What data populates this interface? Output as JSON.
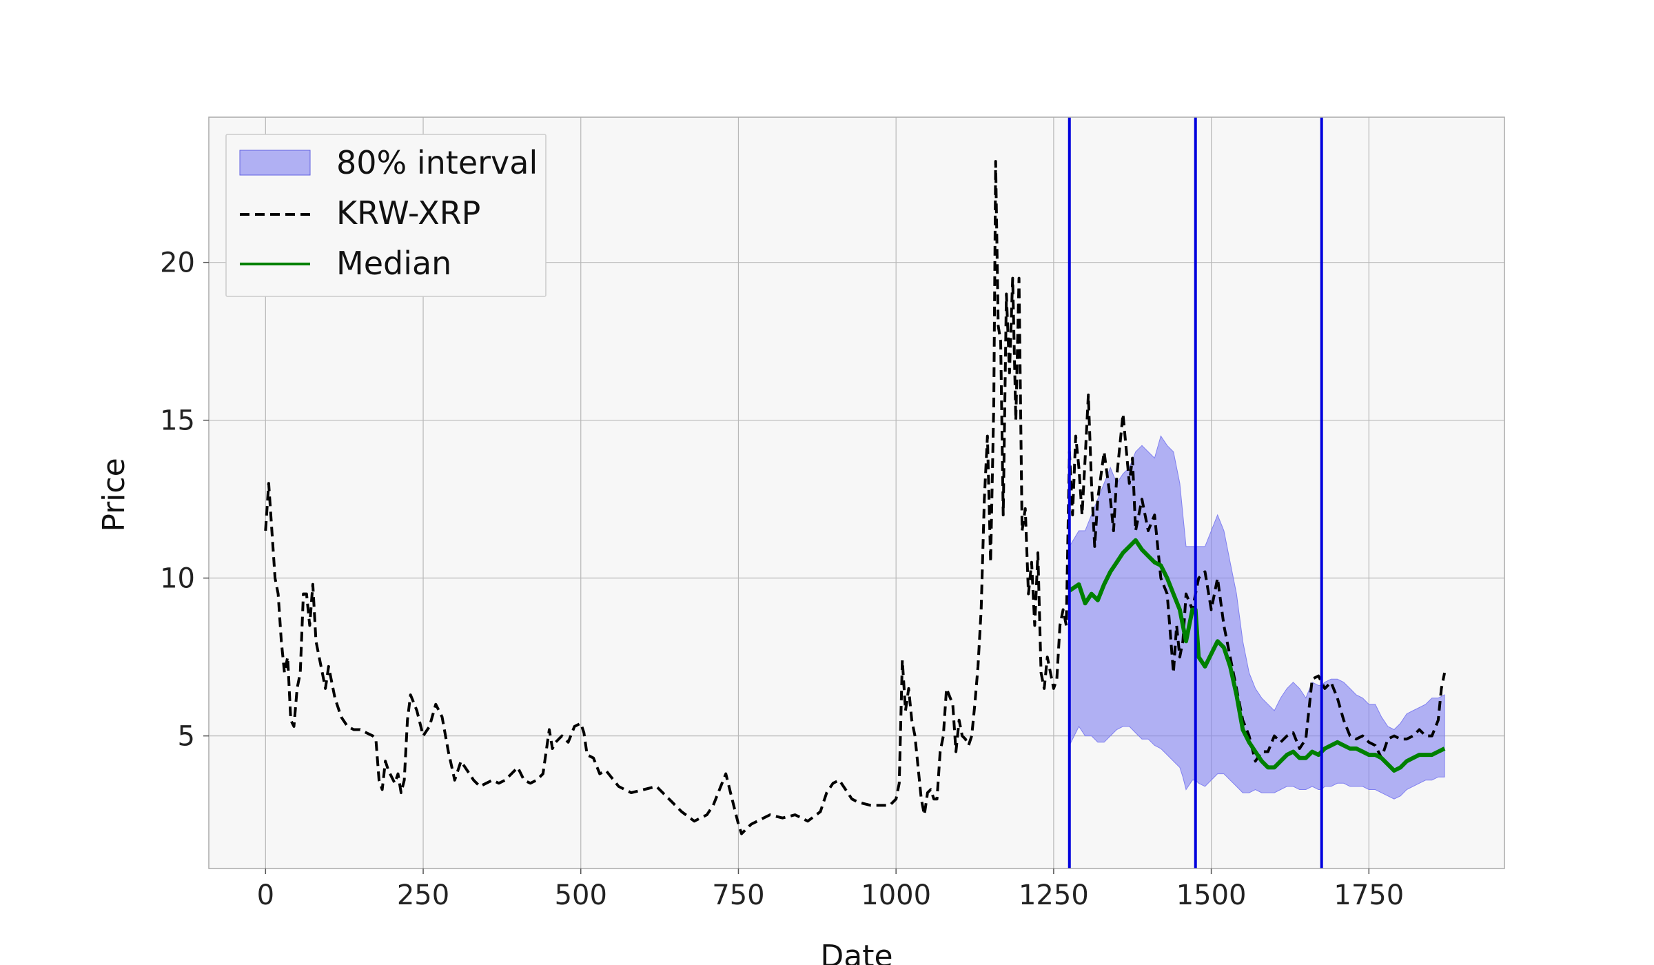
{
  "chart_data": {
    "type": "line",
    "xlabel": "Date",
    "ylabel": "Price",
    "xlim": [
      -90,
      1965
    ],
    "ylim": [
      0.8,
      24.6
    ],
    "xticks": [
      0,
      250,
      500,
      750,
      1000,
      1250,
      1500,
      1750
    ],
    "yticks": [
      5,
      10,
      15,
      20
    ],
    "grid": true,
    "legend": {
      "placement": "top-left",
      "entries": [
        "80% interval",
        "KRW-XRP",
        "Median"
      ]
    },
    "vlines": [
      1275,
      1475,
      1675
    ],
    "colors": {
      "interval": "#8080f0",
      "actual": "#000000",
      "median": "#008000",
      "vline": "#0000dd",
      "background": "#f7f7f7"
    },
    "series": [
      {
        "name": "KRW-XRP",
        "style": "dashed",
        "x": [
          0,
          5,
          10,
          15,
          20,
          25,
          30,
          35,
          40,
          45,
          50,
          55,
          60,
          65,
          70,
          75,
          80,
          85,
          90,
          95,
          100,
          110,
          120,
          130,
          140,
          150,
          160,
          170,
          175,
          180,
          185,
          190,
          195,
          200,
          205,
          210,
          215,
          220,
          225,
          230,
          240,
          250,
          260,
          270,
          280,
          290,
          300,
          310,
          320,
          330,
          340,
          350,
          360,
          370,
          380,
          390,
          400,
          410,
          420,
          430,
          440,
          450,
          455,
          460,
          470,
          480,
          490,
          500,
          505,
          510,
          520,
          530,
          540,
          560,
          580,
          600,
          620,
          640,
          660,
          680,
          700,
          710,
          720,
          730,
          740,
          750,
          755,
          760,
          770,
          780,
          790,
          800,
          820,
          840,
          860,
          880,
          890,
          900,
          910,
          920,
          930,
          940,
          960,
          980,
          990,
          1000,
          1005,
          1010,
          1015,
          1020,
          1025,
          1030,
          1040,
          1045,
          1050,
          1055,
          1060,
          1065,
          1070,
          1075,
          1080,
          1090,
          1095,
          1100,
          1105,
          1110,
          1115,
          1120,
          1125,
          1130,
          1135,
          1140,
          1145,
          1150,
          1155,
          1158,
          1162,
          1166,
          1170,
          1175,
          1180,
          1185,
          1190,
          1195,
          1200,
          1205,
          1210,
          1215,
          1220,
          1225,
          1230,
          1235,
          1240,
          1245,
          1250,
          1255,
          1260,
          1265,
          1270,
          1275,
          1280,
          1285,
          1290,
          1295,
          1300,
          1305,
          1310,
          1315,
          1320,
          1330,
          1340,
          1345,
          1350,
          1360,
          1370,
          1375,
          1380,
          1390,
          1400,
          1410,
          1420,
          1430,
          1440,
          1445,
          1450,
          1455,
          1460,
          1470,
          1480,
          1490,
          1500,
          1510,
          1520,
          1530,
          1540,
          1550,
          1560,
          1570,
          1580,
          1590,
          1600,
          1610,
          1620,
          1630,
          1640,
          1650,
          1660,
          1670,
          1680,
          1690,
          1700,
          1710,
          1720,
          1730,
          1740,
          1750,
          1760,
          1770,
          1780,
          1790,
          1800,
          1810,
          1820,
          1830,
          1840,
          1850,
          1860,
          1865,
          1870
        ],
        "y": [
          11.5,
          13.0,
          11.5,
          10.0,
          9.5,
          8.0,
          7.0,
          7.5,
          5.5,
          5.3,
          6.5,
          7.0,
          9.5,
          9.5,
          8.5,
          9.8,
          8.0,
          7.5,
          7.0,
          6.5,
          7.2,
          6.2,
          5.6,
          5.3,
          5.2,
          5.2,
          5.1,
          5.0,
          4.9,
          3.6,
          3.3,
          4.2,
          3.9,
          3.7,
          3.5,
          3.8,
          3.2,
          3.6,
          5.5,
          6.3,
          5.8,
          5.0,
          5.3,
          6.0,
          5.6,
          4.5,
          3.6,
          4.2,
          3.9,
          3.6,
          3.4,
          3.5,
          3.6,
          3.5,
          3.6,
          3.8,
          4.0,
          3.6,
          3.5,
          3.6,
          3.8,
          5.2,
          4.6,
          4.8,
          5.0,
          4.8,
          5.3,
          5.4,
          5.1,
          4.4,
          4.3,
          3.8,
          3.9,
          3.4,
          3.2,
          3.3,
          3.4,
          3.0,
          2.6,
          2.3,
          2.5,
          2.8,
          3.3,
          3.8,
          3.0,
          2.2,
          1.9,
          2.0,
          2.2,
          2.3,
          2.4,
          2.5,
          2.4,
          2.5,
          2.3,
          2.6,
          3.2,
          3.5,
          3.6,
          3.3,
          3.0,
          2.9,
          2.8,
          2.8,
          2.8,
          3.0,
          3.5,
          7.4,
          5.8,
          6.5,
          5.5,
          5.0,
          3.0,
          2.5,
          3.2,
          3.3,
          3.0,
          3.0,
          4.5,
          5.0,
          6.5,
          6.0,
          4.5,
          5.5,
          5.0,
          4.9,
          4.7,
          5.0,
          6.0,
          7.2,
          9.0,
          12.5,
          14.5,
          10.5,
          15.5,
          23.2,
          18.0,
          17.5,
          12.0,
          19.0,
          16.5,
          19.5,
          15.0,
          19.5,
          11.5,
          12.2,
          9.5,
          10.5,
          8.5,
          10.8,
          7.0,
          6.5,
          7.5,
          7.0,
          6.5,
          6.8,
          8.5,
          9.0,
          8.5,
          14.0,
          12.0,
          14.5,
          13.5,
          12.0,
          13.8,
          15.8,
          13.0,
          11.0,
          12.5,
          14.0,
          12.5,
          11.5,
          13.2,
          15.2,
          13.0,
          13.8,
          11.5,
          12.5,
          11.5,
          12.0,
          10.0,
          9.5,
          7.0,
          8.5,
          7.5,
          8.0,
          9.5,
          9.0,
          10.0,
          10.2,
          9.0,
          10.0,
          8.5,
          7.5,
          6.5,
          5.5,
          5.0,
          4.2,
          4.5,
          4.5,
          5.0,
          4.8,
          5.0,
          5.1,
          4.6,
          4.9,
          6.8,
          6.9,
          6.5,
          6.7,
          6.2,
          5.5,
          5.0,
          4.9,
          5.0,
          4.8,
          4.7,
          4.3,
          4.9,
          5.0,
          4.9,
          4.9,
          5.0,
          5.2,
          5.0,
          5.0,
          5.5,
          6.5,
          7.0
        ]
      },
      {
        "name": "Median",
        "style": "solid",
        "x": [
          1275,
          1290,
          1300,
          1310,
          1320,
          1330,
          1340,
          1350,
          1360,
          1370,
          1380,
          1390,
          1400,
          1410,
          1420,
          1430,
          1440,
          1450,
          1455,
          1460,
          1470,
          1475,
          1480,
          1490,
          1500,
          1510,
          1520,
          1530,
          1540,
          1550,
          1560,
          1570,
          1580,
          1590,
          1600,
          1610,
          1620,
          1630,
          1640,
          1650,
          1660,
          1670,
          1675,
          1680,
          1690,
          1700,
          1710,
          1720,
          1730,
          1740,
          1750,
          1760,
          1770,
          1780,
          1790,
          1800,
          1810,
          1820,
          1830,
          1840,
          1850,
          1860,
          1870
        ],
        "y": [
          9.6,
          9.8,
          9.2,
          9.5,
          9.3,
          9.8,
          10.2,
          10.5,
          10.8,
          11.0,
          11.2,
          10.9,
          10.7,
          10.5,
          10.4,
          10.0,
          9.5,
          9.0,
          8.5,
          8.0,
          9.0,
          9.0,
          7.5,
          7.2,
          7.6,
          8.0,
          7.8,
          7.2,
          6.3,
          5.2,
          4.8,
          4.5,
          4.2,
          4.0,
          4.0,
          4.2,
          4.4,
          4.5,
          4.3,
          4.3,
          4.5,
          4.4,
          4.5,
          4.6,
          4.7,
          4.8,
          4.7,
          4.6,
          4.6,
          4.5,
          4.4,
          4.4,
          4.3,
          4.1,
          3.9,
          4.0,
          4.2,
          4.3,
          4.4,
          4.4,
          4.4,
          4.5,
          4.6
        ]
      },
      {
        "name": "80% interval",
        "style": "band",
        "x": [
          1275,
          1290,
          1300,
          1310,
          1320,
          1330,
          1340,
          1350,
          1360,
          1370,
          1380,
          1390,
          1400,
          1410,
          1420,
          1430,
          1440,
          1450,
          1455,
          1460,
          1470,
          1475,
          1480,
          1490,
          1500,
          1510,
          1520,
          1530,
          1540,
          1550,
          1560,
          1570,
          1580,
          1590,
          1600,
          1610,
          1620,
          1630,
          1640,
          1650,
          1660,
          1670,
          1675,
          1680,
          1690,
          1700,
          1710,
          1720,
          1730,
          1740,
          1750,
          1760,
          1770,
          1780,
          1790,
          1800,
          1810,
          1820,
          1830,
          1840,
          1850,
          1860,
          1870
        ],
        "low": [
          4.7,
          5.3,
          5.0,
          5.0,
          4.8,
          4.8,
          5.0,
          5.2,
          5.3,
          5.3,
          5.1,
          4.9,
          4.9,
          4.7,
          4.6,
          4.4,
          4.2,
          4.0,
          3.7,
          3.3,
          3.6,
          3.6,
          3.5,
          3.4,
          3.6,
          3.8,
          3.8,
          3.6,
          3.4,
          3.2,
          3.2,
          3.3,
          3.2,
          3.2,
          3.2,
          3.3,
          3.4,
          3.4,
          3.3,
          3.3,
          3.4,
          3.3,
          3.3,
          3.4,
          3.4,
          3.5,
          3.5,
          3.4,
          3.4,
          3.4,
          3.3,
          3.3,
          3.2,
          3.1,
          3.0,
          3.1,
          3.3,
          3.4,
          3.5,
          3.6,
          3.6,
          3.7,
          3.7
        ],
        "high": [
          11.0,
          11.5,
          11.5,
          12.0,
          12.5,
          13.0,
          13.5,
          13.0,
          13.3,
          13.5,
          14.0,
          14.2,
          14.0,
          13.8,
          14.5,
          14.2,
          14.0,
          13.0,
          12.0,
          11.0,
          11.0,
          11.0,
          11.0,
          11.0,
          11.5,
          12.0,
          11.5,
          10.5,
          9.5,
          8.0,
          7.0,
          6.5,
          6.2,
          6.0,
          5.8,
          6.2,
          6.5,
          6.7,
          6.5,
          6.2,
          6.7,
          6.6,
          6.6,
          6.7,
          6.8,
          6.8,
          6.7,
          6.5,
          6.3,
          6.2,
          6.0,
          6.0,
          5.6,
          5.3,
          5.2,
          5.4,
          5.7,
          5.8,
          5.9,
          6.0,
          6.2,
          6.2,
          6.3
        ]
      }
    ]
  }
}
